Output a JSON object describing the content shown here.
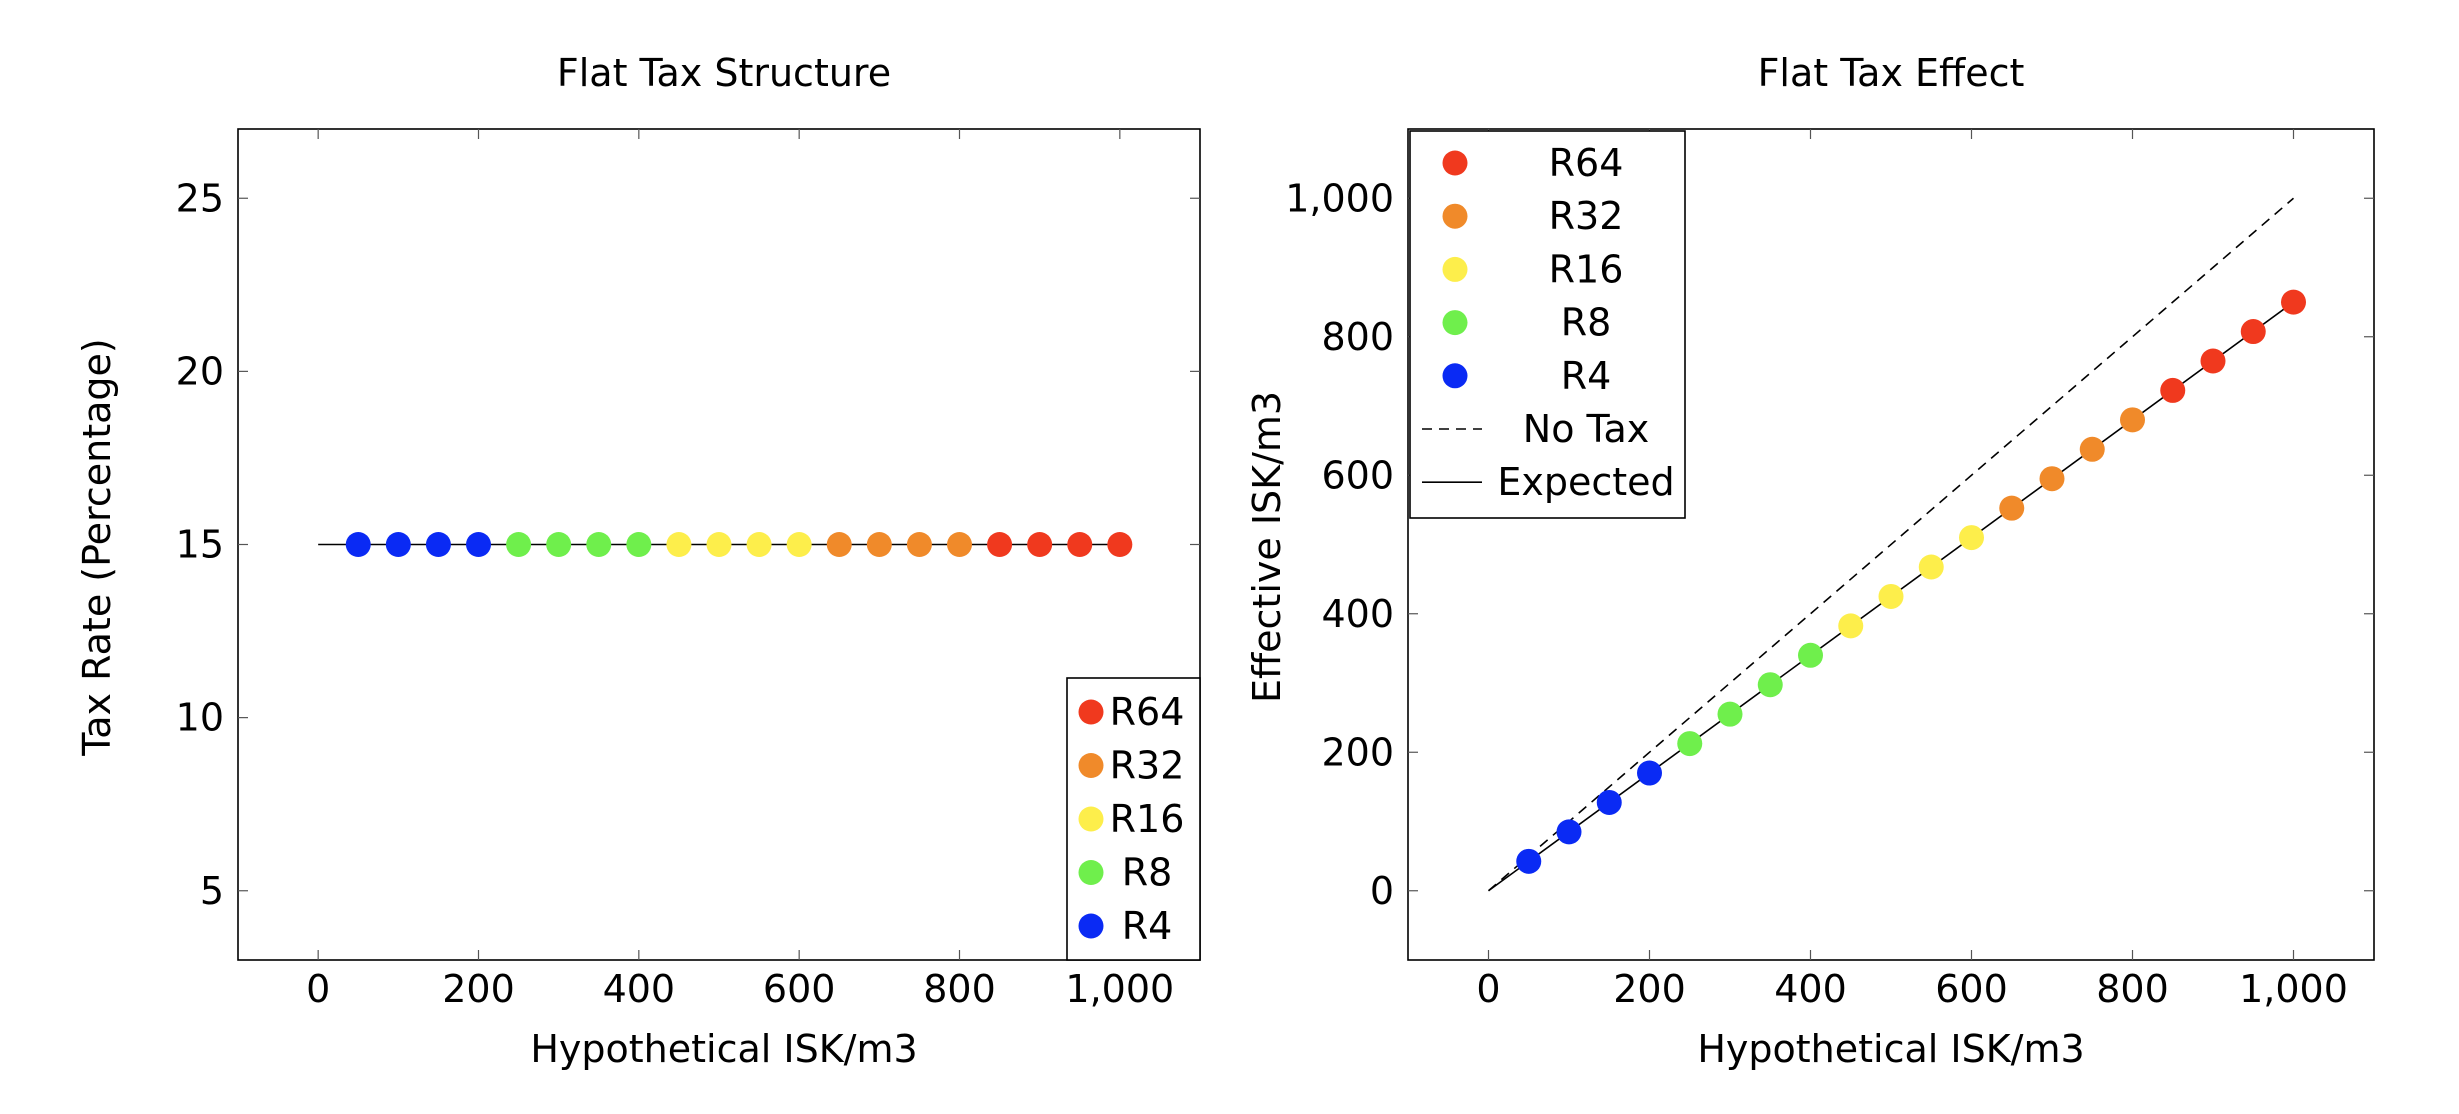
{
  "chart_data": [
    {
      "type": "scatter",
      "title": "Flat Tax Structure",
      "xlabel": "Hypothetical ISK/m3",
      "ylabel": "Tax Rate (Percentage)",
      "xlim": [
        -100,
        1100
      ],
      "ylim": [
        3,
        27
      ],
      "xticks": [
        0,
        200,
        400,
        600,
        800,
        1000
      ],
      "xtick_labels": [
        "0",
        "200",
        "400",
        "600",
        "800",
        "1,000"
      ],
      "yticks": [
        5,
        10,
        15,
        20,
        25
      ],
      "ytick_labels": [
        "5",
        "10",
        "15",
        "20",
        "25"
      ],
      "grid": false,
      "legend_position": "bottom-right",
      "series": [
        {
          "name": "R64",
          "color": "#f0391e",
          "x": [
            850,
            900,
            950,
            1000
          ],
          "y": [
            15,
            15,
            15,
            15
          ]
        },
        {
          "name": "R32",
          "color": "#f08a2a",
          "x": [
            650,
            700,
            750,
            800
          ],
          "y": [
            15,
            15,
            15,
            15
          ]
        },
        {
          "name": "R16",
          "color": "#fdee4b",
          "x": [
            450,
            500,
            550,
            600
          ],
          "y": [
            15,
            15,
            15,
            15
          ]
        },
        {
          "name": "R8",
          "color": "#6fef4c",
          "x": [
            250,
            300,
            350,
            400
          ],
          "y": [
            15,
            15,
            15,
            15
          ]
        },
        {
          "name": "R4",
          "color": "#0a2af4",
          "x": [
            50,
            100,
            150,
            200
          ],
          "y": [
            15,
            15,
            15,
            15
          ]
        }
      ],
      "lines": [
        {
          "style": "solid",
          "x": [
            0,
            1000
          ],
          "y": [
            15,
            15
          ]
        }
      ]
    },
    {
      "type": "scatter",
      "title": "Flat Tax Effect",
      "xlabel": "Hypothetical ISK/m3",
      "ylabel": "Effective ISK/m3",
      "xlim": [
        -100,
        1100
      ],
      "ylim": [
        -100,
        1100
      ],
      "xticks": [
        0,
        200,
        400,
        600,
        800,
        1000
      ],
      "xtick_labels": [
        "0",
        "200",
        "400",
        "600",
        "800",
        "1,000"
      ],
      "yticks": [
        0,
        200,
        400,
        600,
        800,
        1000
      ],
      "ytick_labels": [
        "0",
        "200",
        "400",
        "600",
        "800",
        "1,000"
      ],
      "grid": false,
      "legend_position": "top-left",
      "series": [
        {
          "name": "R64",
          "color": "#f0391e",
          "x": [
            850,
            900,
            950,
            1000
          ],
          "y": [
            722.5,
            765,
            807.5,
            850
          ]
        },
        {
          "name": "R32",
          "color": "#f08a2a",
          "x": [
            650,
            700,
            750,
            800
          ],
          "y": [
            552.5,
            595,
            637.5,
            680
          ]
        },
        {
          "name": "R16",
          "color": "#fdee4b",
          "x": [
            450,
            500,
            550,
            600
          ],
          "y": [
            382.5,
            425,
            467.5,
            510
          ]
        },
        {
          "name": "R8",
          "color": "#6fef4c",
          "x": [
            250,
            300,
            350,
            400
          ],
          "y": [
            212.5,
            255,
            297.5,
            340
          ]
        },
        {
          "name": "R4",
          "color": "#0a2af4",
          "x": [
            50,
            100,
            150,
            200
          ],
          "y": [
            42.5,
            85,
            127.5,
            170
          ]
        }
      ],
      "lines": [
        {
          "name": "No Tax",
          "style": "dashed",
          "x": [
            0,
            1000
          ],
          "y": [
            0,
            1000
          ]
        },
        {
          "name": "Expected",
          "style": "solid",
          "x": [
            0,
            1000
          ],
          "y": [
            0,
            850
          ]
        }
      ]
    }
  ]
}
